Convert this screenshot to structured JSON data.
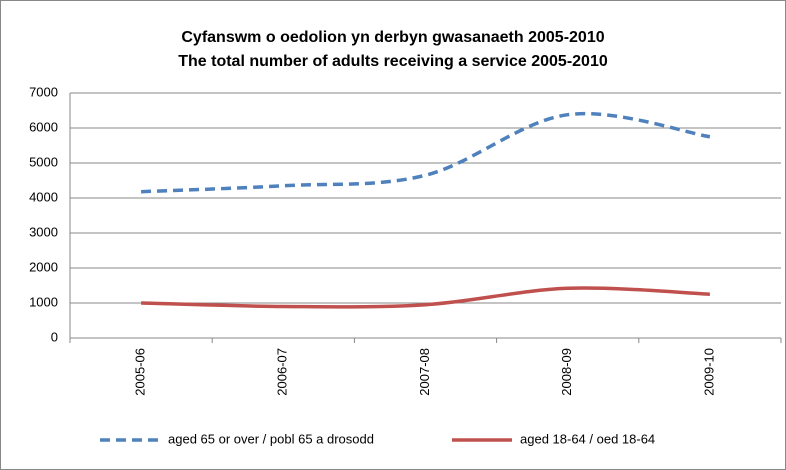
{
  "chart_data": {
    "type": "line",
    "title": "Cyfanswm o oedolion yn derbyn gwasanaeth 2005-2010",
    "subtitle": "The total number of adults receiving a service 2005-2010",
    "categories": [
      "2005-06",
      "2006-07",
      "2007-08",
      "2008-09",
      "2009-10"
    ],
    "series": [
      {
        "name": "aged 65 or over / pobl 65 a drosodd",
        "color": "#4f81bd",
        "dashed": true,
        "values": [
          4180,
          4350,
          4650,
          6380,
          5750
        ]
      },
      {
        "name": "aged 18-64 /  oed 18-64",
        "color": "#c0504d",
        "dashed": false,
        "values": [
          1000,
          900,
          950,
          1420,
          1250
        ]
      }
    ],
    "ylim": [
      0,
      7000
    ],
    "yticks": [
      0,
      1000,
      2000,
      3000,
      4000,
      5000,
      6000,
      7000
    ],
    "grid": true,
    "smooth": true,
    "legend": "bottom"
  }
}
